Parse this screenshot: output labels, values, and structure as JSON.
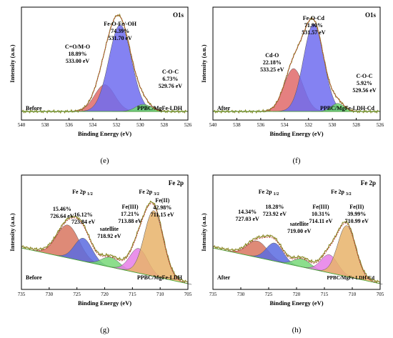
{
  "chart_data": [
    {
      "panel": "(e)",
      "type": "area",
      "title": "O1s",
      "xlabel": "Binding Energy (eV)",
      "ylabel": "Intensity (a.u.)",
      "xlim": [
        540,
        526
      ],
      "xticks": [
        540,
        538,
        536,
        534,
        532,
        530,
        528,
        526
      ],
      "state_label": "Before",
      "sample_label": "PPBC/MgFe-LDH",
      "series": [
        {
          "color": "#e06a6a",
          "x": 533.0,
          "peak_height": 0.3,
          "width": 0.85,
          "labels": [
            "C=O/M-O",
            "18.89%",
            "533.00 eV"
          ]
        },
        {
          "color": "#6f6cf0",
          "x": 531.7,
          "peak_height": 0.97,
          "width": 0.95,
          "labels": [
            "Fe-O-Fe/-OH",
            "74.39%",
            "531.70 eV"
          ]
        },
        {
          "color": "#6ed86e",
          "x": 529.76,
          "peak_height": 0.08,
          "width": 0.65,
          "labels": [
            "C-O-C",
            "6.73%",
            "529.76 eV"
          ]
        }
      ]
    },
    {
      "panel": "(f)",
      "type": "area",
      "title": "O1s",
      "xlabel": "Binding Energy (eV)",
      "ylabel": "Intensity (a.u.)",
      "xlim": [
        540,
        526
      ],
      "xticks": [
        540,
        538,
        536,
        534,
        532,
        530,
        528,
        526
      ],
      "state_label": "After",
      "sample_label": "PPBC/MgFe-LDH-Cd",
      "series": [
        {
          "color": "#e06a6a",
          "x": 533.25,
          "peak_height": 0.48,
          "width": 0.8,
          "labels": [
            "Cd-O",
            "22.18%",
            "533.25 eV"
          ]
        },
        {
          "color": "#6f6cf0",
          "x": 531.57,
          "peak_height": 0.98,
          "width": 0.85,
          "labels": [
            "Fe-O-Cd",
            "71.90%",
            "531.57 eV"
          ]
        },
        {
          "color": "#6ed86e",
          "x": 529.56,
          "peak_height": 0.09,
          "width": 0.55,
          "labels": [
            "C-O-C",
            "5.92%",
            "529.56 eV"
          ]
        }
      ]
    },
    {
      "panel": "(g)",
      "type": "area",
      "title": "Fe 2p",
      "xlabel": "Binding Energy (eV)",
      "ylabel": "Intensity (a.u.)",
      "xlim": [
        735,
        705
      ],
      "xticks": [
        735,
        730,
        725,
        720,
        715,
        710,
        705
      ],
      "state_label": "Before",
      "sample_label": "PPBC/MgFe-LDH",
      "group_labels": [
        {
          "text": "Fe 2p",
          "sub": "1/2",
          "x": 724
        },
        {
          "text": "Fe 2p",
          "sub": "3/2",
          "x": 712
        }
      ],
      "series": [
        {
          "color": "#d8765f",
          "x": 726.64,
          "peak_height": 0.4,
          "width": 2.0,
          "labels": [
            "15.46%",
            "726.64 eV"
          ]
        },
        {
          "color": "#5a6be0",
          "x": 723.84,
          "peak_height": 0.28,
          "width": 1.6,
          "labels": [
            "16.12%",
            "723.84 eV"
          ]
        },
        {
          "color": "#78d878",
          "x": 718.92,
          "peak_height": 0.12,
          "width": 1.6,
          "labels": [
            "satellite",
            "718.92 eV"
          ]
        },
        {
          "color": "#e67ee6",
          "x": 713.88,
          "peak_height": 0.3,
          "width": 1.6,
          "labels": [
            "Fe(III)",
            "17.21%",
            "713.88 eV"
          ]
        },
        {
          "color": "#e8b36a",
          "x": 711.15,
          "peak_height": 0.8,
          "width": 1.7,
          "labels": [
            "Fe(II)",
            "42.98%",
            "711.15 eV"
          ]
        }
      ]
    },
    {
      "panel": "(h)",
      "type": "area",
      "title": "Fe 2p",
      "xlabel": "Binding Energy (eV)",
      "ylabel": "Intensity (a.u.)",
      "xlim": [
        735,
        705
      ],
      "xticks": [
        735,
        730,
        725,
        720,
        715,
        710,
        705
      ],
      "state_label": "After",
      "sample_label": "PPBC/MgFe-LDH-Cd",
      "group_labels": [
        {
          "text": "Fe 2p",
          "sub": "1/2",
          "x": 725
        },
        {
          "text": "Fe 2p",
          "sub": "3/2",
          "x": 712
        }
      ],
      "series": [
        {
          "color": "#d8765f",
          "x": 727.03,
          "peak_height": 0.2,
          "width": 1.8,
          "labels": [
            "14.34%",
            "727.03 eV"
          ]
        },
        {
          "color": "#5a6be0",
          "x": 723.92,
          "peak_height": 0.22,
          "width": 1.5,
          "labels": [
            "18.28%",
            "723.92 eV"
          ]
        },
        {
          "color": "#78d878",
          "x": 719.0,
          "peak_height": 0.1,
          "width": 1.5,
          "labels": [
            "satellite",
            "719.00 eV"
          ]
        },
        {
          "color": "#e67ee6",
          "x": 714.11,
          "peak_height": 0.22,
          "width": 1.5,
          "labels": [
            "Fe(III)",
            "10.31%",
            "714.11 eV"
          ]
        },
        {
          "color": "#e8b36a",
          "x": 710.99,
          "peak_height": 0.62,
          "width": 1.6,
          "labels": [
            "Fe(II)",
            "39.99%",
            "710.99 eV"
          ]
        }
      ]
    }
  ]
}
